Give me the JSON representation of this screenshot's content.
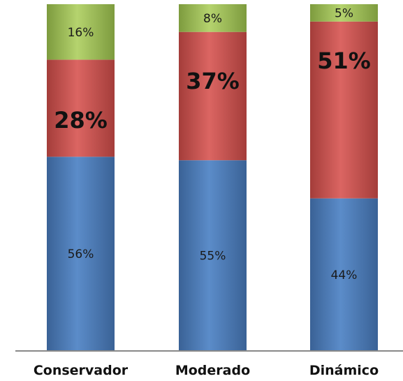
{
  "chart_data": {
    "type": "bar",
    "stacked": true,
    "percent_stacked": true,
    "categories": [
      "Conservador",
      "Moderado",
      "Dinámico"
    ],
    "series": [
      {
        "values": [
          56,
          55,
          44
        ],
        "labels": [
          "56%",
          "55%",
          "44%"
        ],
        "color": "#4F81BD"
      },
      {
        "values": [
          28,
          37,
          51
        ],
        "labels": [
          "28%",
          "37%",
          "51%"
        ],
        "color": "#C0504D"
      },
      {
        "values": [
          16,
          8,
          5
        ],
        "labels": [
          "16%",
          "8%",
          "5%"
        ],
        "color": "#9BBB59"
      }
    ],
    "ylim": [
      0,
      100
    ],
    "grid": false,
    "legend": "none"
  }
}
